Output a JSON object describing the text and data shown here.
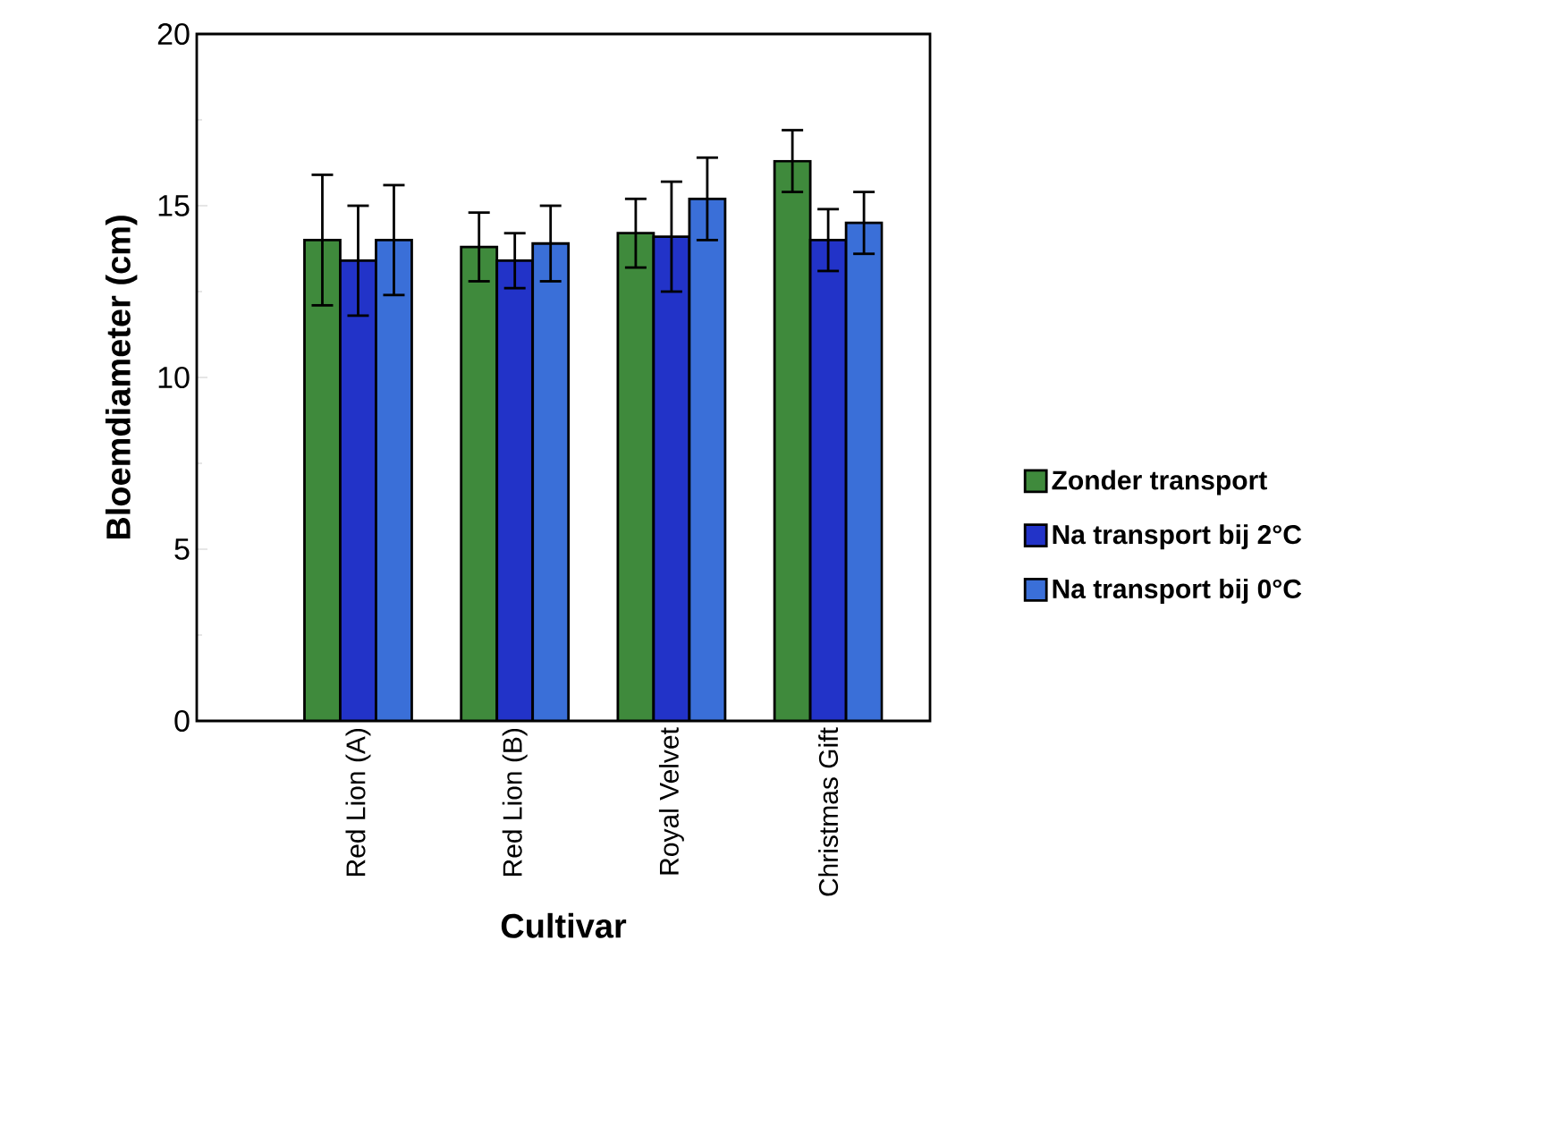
{
  "chart_data": {
    "type": "bar",
    "xlabel": "Cultivar",
    "ylabel": "Bloemdiameter (cm)",
    "categories": [
      "Red Lion (A)",
      "Red Lion (B)",
      "Royal Velvet",
      "Christmas Gift"
    ],
    "series": [
      {
        "name": "Zonder transport",
        "color": "#3f8a3c",
        "values": [
          14.0,
          13.8,
          14.2,
          16.3
        ],
        "errors": [
          1.9,
          1.0,
          1.0,
          0.9
        ]
      },
      {
        "name": "Na transport bij 2°C",
        "color": "#2233c8",
        "values": [
          13.4,
          13.4,
          14.1,
          14.0
        ],
        "errors": [
          1.6,
          0.8,
          1.6,
          0.9
        ]
      },
      {
        "name": "Na transport bij 0°C",
        "color": "#3a6fd8",
        "values": [
          14.0,
          13.9,
          15.2,
          14.5
        ],
        "errors": [
          1.6,
          1.1,
          1.2,
          0.9
        ]
      }
    ],
    "ylim": [
      0,
      20
    ],
    "yticks": [
      0,
      5,
      10,
      15,
      20
    ],
    "legend": "right",
    "grid": false
  }
}
